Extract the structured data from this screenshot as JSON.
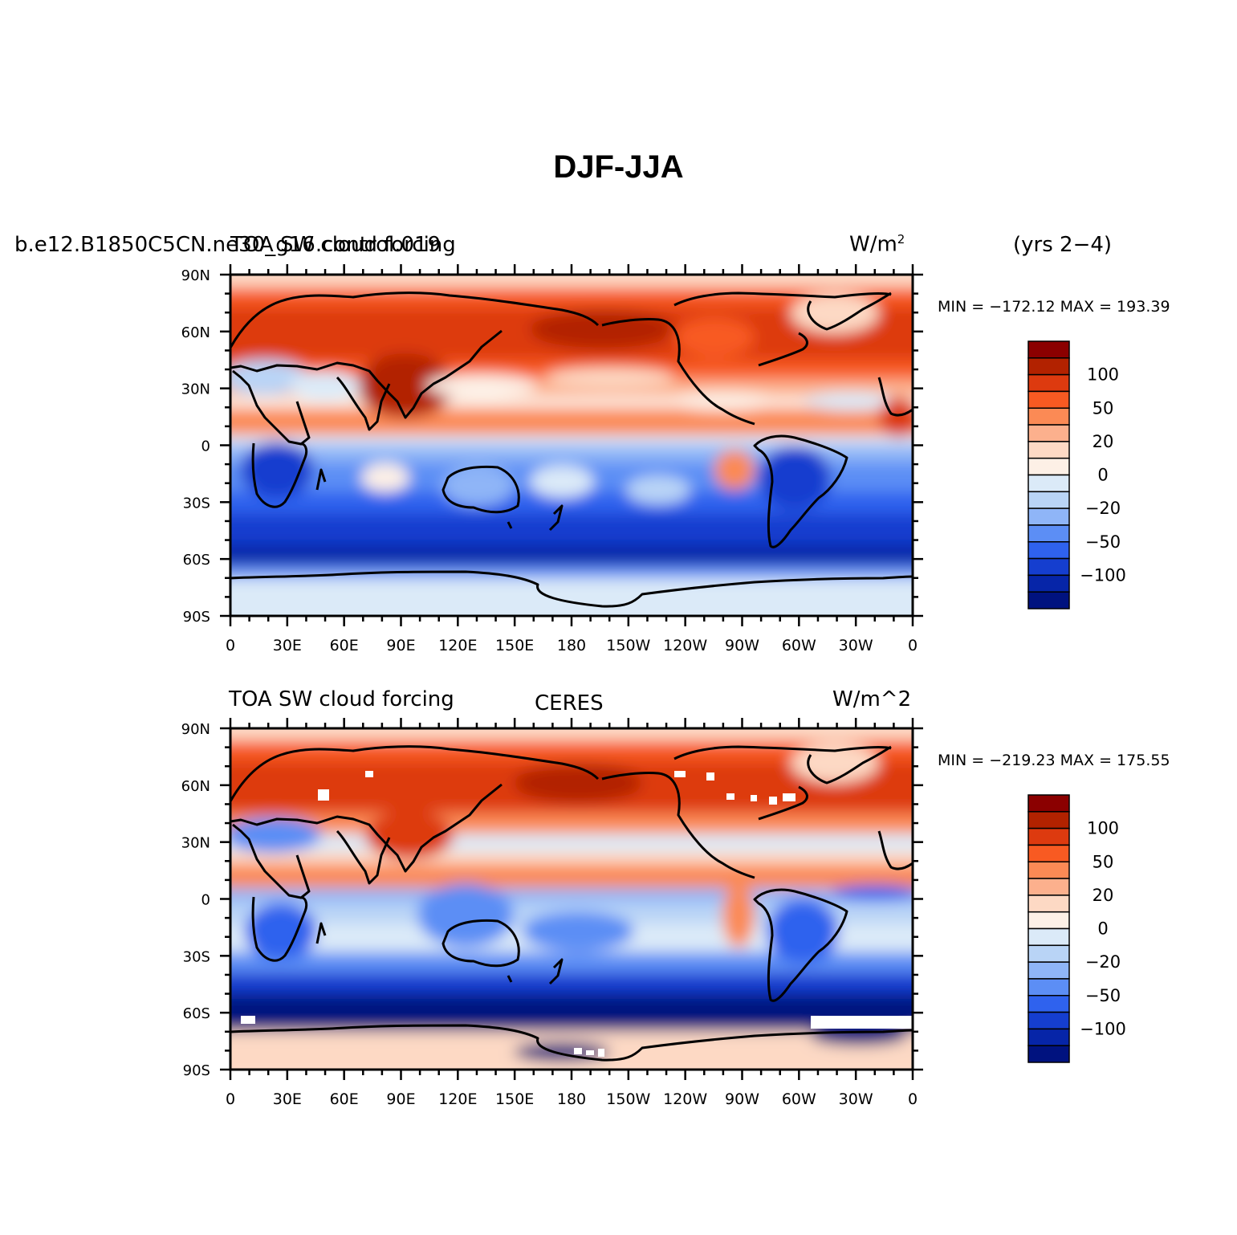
{
  "title": "DJF-JJA",
  "panels": [
    {
      "id": "model",
      "left_title": "TOA SW cloud forcing",
      "left_title_2": "b.e12.B1850C5CN.ne30_g16.control.019",
      "units": "W/m",
      "units_sup": "2",
      "right_note": "(yrs 2−4)",
      "center_title": "",
      "min_max": "MIN = −172.12  MAX = 193.39"
    },
    {
      "id": "obs",
      "left_title": "TOA SW cloud forcing",
      "left_title_2": "",
      "units": "W/m^2",
      "units_sup": "",
      "right_note": "",
      "center_title": "CERES",
      "min_max": "MIN = −219.23  MAX = 175.55"
    }
  ],
  "axes": {
    "lon_ticks": [
      "0",
      "30E",
      "60E",
      "90E",
      "120E",
      "150E",
      "180",
      "150W",
      "120W",
      "90W",
      "60W",
      "30W",
      "0"
    ],
    "lat_ticks": [
      "90N",
      "60N",
      "30N",
      "0",
      "30S",
      "60S",
      "90S"
    ]
  },
  "colorbar": {
    "labels": [
      "100",
      "50",
      "20",
      "0",
      "−20",
      "−50",
      "−100"
    ],
    "colors": [
      "#8b0000",
      "#b22200",
      "#dd3a0f",
      "#f85a22",
      "#fb8a55",
      "#fcb08d",
      "#fdd9c4",
      "#fdf0e6",
      "#dbeaf8",
      "#b9d4f6",
      "#8fb5f7",
      "#5c8ef5",
      "#2f62ee",
      "#153ecf",
      "#0625a8",
      "#00127f"
    ]
  },
  "colors": {
    "land_outline": "#000000",
    "missing": "#ffffff"
  }
}
